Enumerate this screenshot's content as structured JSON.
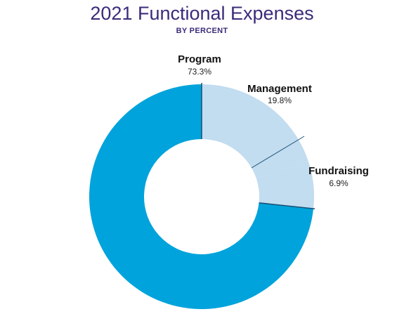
{
  "chart_data": {
    "type": "pie",
    "title": "2021 Functional Expenses",
    "subtitle": "BY PERCENT",
    "slices": [
      {
        "key": "program",
        "label": "Program",
        "value_text": "73.3%",
        "value": 73.3,
        "color": "#00a3db"
      },
      {
        "key": "management",
        "label": "Management",
        "value_text": "19.8%",
        "value": 19.8,
        "color": "#c2dcf0"
      },
      {
        "key": "fundraising",
        "label": "Fundraising",
        "value_text": "6.9%",
        "value": 6.9,
        "color": "#c2dcf0"
      }
    ]
  },
  "colors": {
    "title": "#3b2b7a",
    "divider": "#1a4f73"
  }
}
